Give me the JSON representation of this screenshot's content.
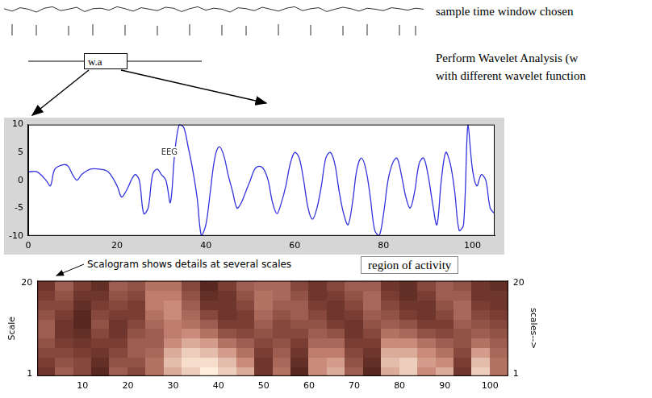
{
  "top": {
    "caption": "sample time window chosen",
    "box": "w.a",
    "notes": [
      "Perform Wavelet Analysis (w",
      "with different wavelet function"
    ],
    "signal": {
      "values": [
        0.2,
        -0.3,
        0.4,
        0.1,
        -0.5,
        0.3,
        0.6,
        -0.2,
        0.1,
        0.5,
        -0.4,
        0.2,
        0.3,
        -0.1,
        0.6,
        0.2,
        -0.3,
        0.4,
        0.1,
        -0.2,
        0.5,
        0.3,
        -0.4,
        0.2,
        0.6,
        -0.1,
        0.3,
        0.1,
        -0.5,
        0.4,
        0.2,
        -0.2,
        0.5,
        0.1,
        -0.3,
        0.3,
        0.6,
        -0.2,
        0.2,
        0.4,
        -0.4,
        0.1,
        0.5,
        0.2,
        -0.3,
        0.3,
        0.1,
        -0.2,
        0.4,
        0.2,
        -0.1,
        0.3,
        0.1
      ],
      "markers": [
        1,
        4,
        8,
        11,
        15,
        19,
        23,
        27,
        30,
        34,
        38,
        42,
        45,
        49,
        51
      ]
    }
  },
  "chart_data": [
    {
      "type": "line",
      "annotations": [
        "EEG",
        "region of activity"
      ],
      "color": "#3333dd",
      "grid": false,
      "x": [
        0,
        2,
        4,
        5,
        6,
        8,
        9,
        10,
        11,
        12,
        14,
        16,
        18,
        20,
        21,
        22,
        24,
        25,
        26,
        27,
        28,
        29,
        30,
        31,
        32,
        33,
        34,
        35,
        36,
        37,
        38,
        39,
        40,
        41,
        42,
        43,
        44,
        45,
        46,
        47,
        48,
        49,
        50,
        51,
        52,
        53,
        54,
        55,
        56,
        57,
        58,
        59,
        60,
        61,
        62,
        63,
        64,
        65,
        66,
        67,
        68,
        69,
        70,
        71,
        72,
        73,
        74,
        75,
        76,
        77,
        78,
        79,
        80,
        81,
        82,
        83,
        84,
        85,
        86,
        87,
        88,
        89,
        90,
        91,
        92,
        93,
        94,
        95,
        96,
        97,
        98,
        99,
        100,
        101,
        102,
        103,
        104,
        105
      ],
      "values": [
        1.5,
        1.5,
        0,
        -1,
        2,
        2.8,
        2.5,
        1,
        0,
        1,
        2,
        2,
        1.5,
        -1,
        -3,
        -2,
        1,
        0,
        -6,
        -5,
        1,
        2,
        1,
        0,
        -4,
        5,
        10,
        9.5,
        6,
        2,
        -3,
        -10,
        -8,
        -2,
        4,
        6,
        4.5,
        1,
        -2,
        -5,
        -4,
        -2,
        0,
        2,
        2.5,
        2,
        0,
        -4,
        -6,
        -4,
        -1,
        3,
        5,
        4,
        0,
        -5,
        -7,
        -5,
        -1,
        4,
        5,
        3,
        -2,
        -6,
        -8,
        -4,
        2,
        4,
        2,
        -3,
        -9,
        -10,
        -6,
        0,
        3,
        4,
        1,
        -3,
        -5,
        -2,
        3,
        4,
        1,
        -4,
        -8,
        0,
        5,
        3,
        -2,
        -9,
        -8,
        10,
        2,
        -1,
        1,
        0,
        -5,
        -6
      ],
      "xlim": [
        0,
        105
      ],
      "xticks": [
        0,
        20,
        40,
        60,
        80,
        100
      ],
      "ylim": [
        -10,
        10
      ],
      "yticks": [
        -10,
        -5,
        0,
        5,
        10
      ]
    },
    {
      "type": "heatmap",
      "title": "Scalogram shows  details at several scales",
      "y_label": "Scale",
      "y2_label": "scales-->",
      "grid": false,
      "x_edges": [
        0,
        4,
        8,
        12,
        16,
        20,
        24,
        28,
        32,
        36,
        40,
        44,
        48,
        52,
        56,
        60,
        64,
        68,
        72,
        76,
        80,
        84,
        88,
        92,
        96,
        100,
        104
      ],
      "y_edges": [
        0.5,
        2.5,
        4.5,
        6.5,
        8.5,
        10.5,
        12.5,
        14.5,
        16.5,
        18.5,
        20.5
      ],
      "cells": [
        [
          0.3,
          0.5,
          0.4,
          0.2,
          0.5,
          0.4,
          0.6,
          0.8,
          0.9,
          1.0,
          0.9,
          0.8,
          0.3,
          0.6,
          0.2,
          0.7,
          0.8,
          0.5,
          0.2,
          0.8,
          0.9,
          0.7,
          0.8,
          0.3,
          0.9,
          0.6
        ],
        [
          0.35,
          0.45,
          0.4,
          0.25,
          0.45,
          0.45,
          0.6,
          0.85,
          0.95,
          0.95,
          0.85,
          0.7,
          0.3,
          0.55,
          0.25,
          0.7,
          0.75,
          0.45,
          0.25,
          0.85,
          0.9,
          0.75,
          0.7,
          0.35,
          0.85,
          0.6
        ],
        [
          0.4,
          0.4,
          0.35,
          0.3,
          0.4,
          0.5,
          0.55,
          0.8,
          0.9,
          0.85,
          0.75,
          0.6,
          0.35,
          0.5,
          0.3,
          0.65,
          0.65,
          0.4,
          0.3,
          0.8,
          0.8,
          0.7,
          0.6,
          0.4,
          0.75,
          0.55
        ],
        [
          0.45,
          0.35,
          0.3,
          0.35,
          0.35,
          0.5,
          0.5,
          0.7,
          0.8,
          0.75,
          0.6,
          0.5,
          0.4,
          0.45,
          0.35,
          0.55,
          0.55,
          0.35,
          0.35,
          0.7,
          0.7,
          0.6,
          0.5,
          0.45,
          0.6,
          0.5
        ],
        [
          0.5,
          0.3,
          0.25,
          0.4,
          0.3,
          0.45,
          0.5,
          0.65,
          0.7,
          0.6,
          0.45,
          0.4,
          0.45,
          0.4,
          0.4,
          0.5,
          0.45,
          0.3,
          0.4,
          0.6,
          0.55,
          0.45,
          0.4,
          0.45,
          0.5,
          0.45
        ],
        [
          0.5,
          0.3,
          0.2,
          0.45,
          0.3,
          0.4,
          0.55,
          0.65,
          0.6,
          0.5,
          0.35,
          0.35,
          0.5,
          0.4,
          0.45,
          0.45,
          0.35,
          0.3,
          0.45,
          0.5,
          0.45,
          0.35,
          0.35,
          0.5,
          0.45,
          0.4
        ],
        [
          0.45,
          0.35,
          0.2,
          0.4,
          0.35,
          0.35,
          0.6,
          0.7,
          0.55,
          0.4,
          0.3,
          0.35,
          0.55,
          0.45,
          0.5,
          0.4,
          0.3,
          0.35,
          0.5,
          0.45,
          0.35,
          0.3,
          0.4,
          0.55,
          0.4,
          0.35
        ],
        [
          0.4,
          0.4,
          0.25,
          0.35,
          0.4,
          0.35,
          0.65,
          0.7,
          0.5,
          0.3,
          0.3,
          0.4,
          0.6,
          0.5,
          0.5,
          0.35,
          0.3,
          0.4,
          0.55,
          0.4,
          0.3,
          0.3,
          0.45,
          0.55,
          0.35,
          0.3
        ],
        [
          0.35,
          0.45,
          0.3,
          0.3,
          0.45,
          0.4,
          0.65,
          0.65,
          0.45,
          0.25,
          0.3,
          0.45,
          0.6,
          0.55,
          0.45,
          0.3,
          0.35,
          0.45,
          0.55,
          0.35,
          0.25,
          0.35,
          0.5,
          0.5,
          0.3,
          0.3
        ],
        [
          0.3,
          0.5,
          0.35,
          0.25,
          0.5,
          0.45,
          0.6,
          0.6,
          0.4,
          0.2,
          0.35,
          0.5,
          0.55,
          0.55,
          0.4,
          0.3,
          0.4,
          0.5,
          0.5,
          0.3,
          0.25,
          0.4,
          0.5,
          0.45,
          0.3,
          0.25
        ]
      ],
      "zlim": [
        0,
        1
      ],
      "xlim": [
        0,
        104
      ],
      "xticks": [
        10,
        20,
        30,
        40,
        50,
        60,
        70,
        80,
        90,
        100
      ],
      "ylim": [
        0.5,
        20.5
      ],
      "yticks": [
        1,
        20
      ],
      "y2lim": [
        0.5,
        20.5
      ],
      "y2ticks": [
        1,
        20
      ]
    }
  ]
}
